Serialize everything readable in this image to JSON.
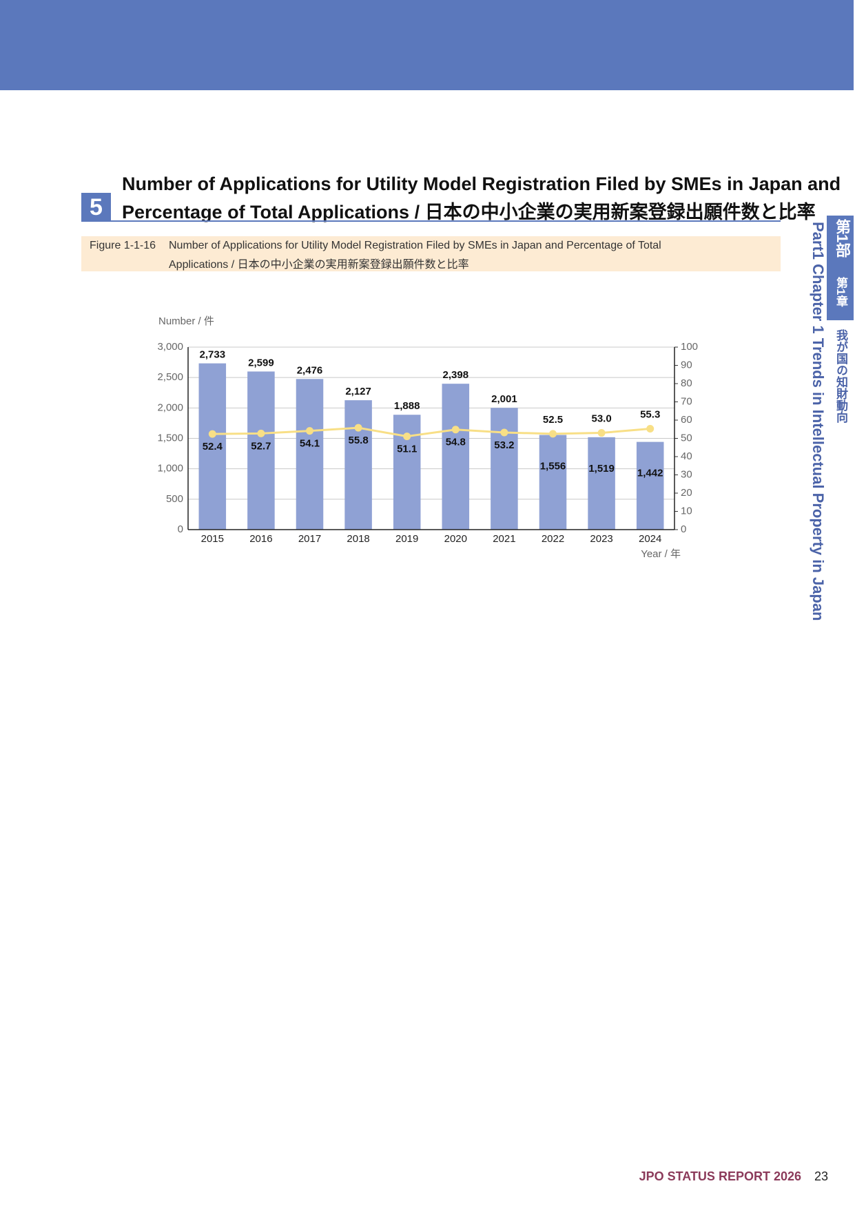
{
  "section": {
    "number": "5",
    "title_line1": "Number of Applications for Utility Model Registration Filed by SMEs in Japan and",
    "title_line2": "Percentage of Total Applications / 日本の中小企業の実用新案登録出願件数と比率"
  },
  "caption": {
    "label": "Figure 1-1-16",
    "line1": "Number of Applications for Utility Model Registration Filed by SMEs in Japan and Percentage of Total",
    "line2": "Applications / 日本の中小企業の実用新案登録出願件数と比率"
  },
  "side": {
    "part_ja": "第1部",
    "chapter_ja": "第1章",
    "title_ja": "我が国の知財動向",
    "en": "Part1  Chapter 1  Trends in Intellectual Property in Japan"
  },
  "footer": {
    "report": "JPO STATUS REPORT 2026",
    "page": "23"
  },
  "chart_data": {
    "type": "combo",
    "y_label": "Number / 件",
    "x_label": "Year / 年",
    "categories": [
      "2015",
      "2016",
      "2017",
      "2018",
      "2019",
      "2020",
      "2021",
      "2022",
      "2023",
      "2024"
    ],
    "series": [
      {
        "type": "bar",
        "color": "#8fa1d4",
        "values": [
          2733,
          2599,
          2476,
          2127,
          1888,
          2398,
          2001,
          1556,
          1519,
          1442
        ],
        "value_labels": [
          "2,733",
          "2,599",
          "2,476",
          "2,127",
          "1,888",
          "2,398",
          "2,001",
          "1,556",
          "1,519",
          "1,442"
        ]
      },
      {
        "type": "line",
        "axis": "y2",
        "color": "#f8df86",
        "values": [
          52.4,
          52.7,
          54.1,
          55.8,
          51.1,
          54.8,
          53.2,
          52.5,
          53.0,
          55.3
        ],
        "value_labels": [
          "52.4",
          "52.7",
          "54.1",
          "55.8",
          "51.1",
          "54.8",
          "53.2",
          "52.5",
          "53.0",
          "55.3"
        ]
      }
    ],
    "ylim": [
      0,
      3000
    ],
    "yticks": [
      0,
      500,
      {
        "value": 1000,
        "label": "1,000"
      },
      {
        "value": 1500,
        "label": "1,500"
      },
      {
        "value": 2000,
        "label": "2,000"
      },
      {
        "value": 2500,
        "label": "2,500"
      },
      {
        "value": 3000,
        "label": "3,000"
      }
    ],
    "y2lim": [
      0,
      100
    ],
    "y2ticks": [
      0,
      10,
      20,
      30,
      40,
      50,
      60,
      70,
      80,
      90,
      100
    ],
    "grid": true
  }
}
